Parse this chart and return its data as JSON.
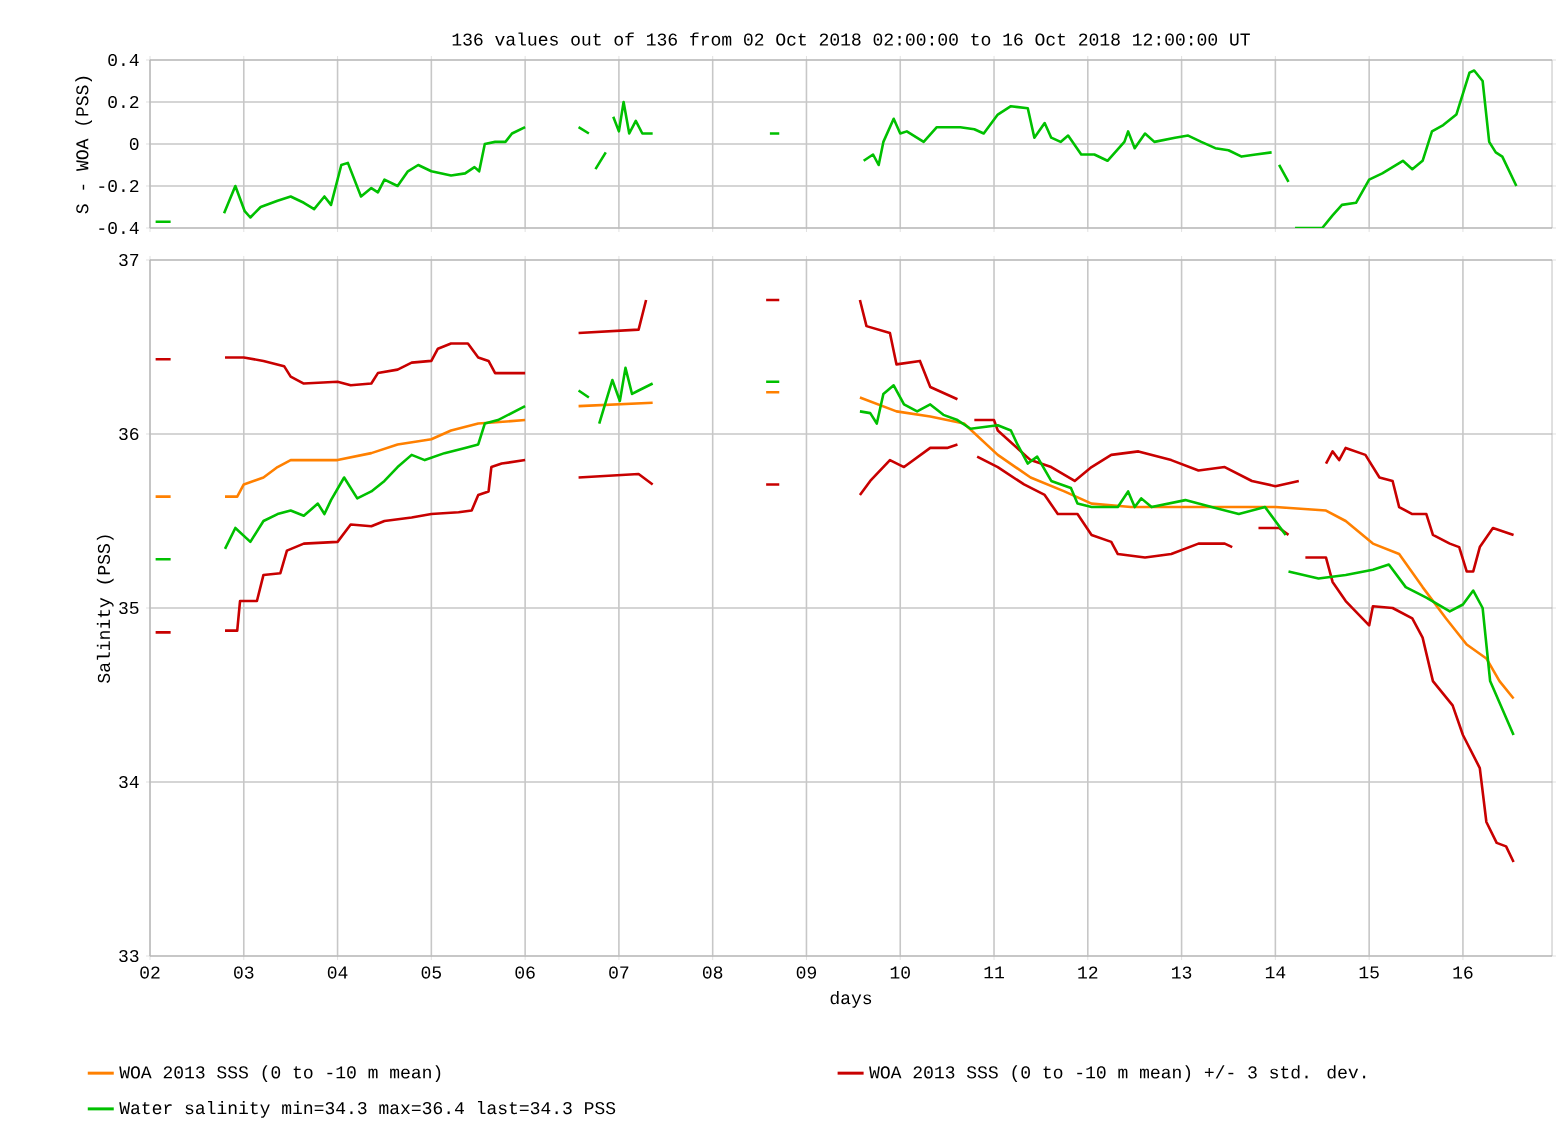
{
  "chart_data": [
    {
      "type": "line",
      "title": "136 values out of 136 from 02 Oct 2018 02:00:00 to 16 Oct 2018 12:00:00 UT",
      "ylabel": "S - WOA (PSS)",
      "xlim": [
        2,
        16.95
      ],
      "ylim": [
        -0.4,
        0.4
      ],
      "xticks": [
        2,
        3,
        4,
        5,
        6,
        7,
        8,
        9,
        10,
        11,
        12,
        13,
        14,
        15,
        16
      ],
      "yticks": [
        -0.4,
        -0.2,
        0,
        0.2,
        0.4
      ],
      "tick_labels": "y",
      "grid": true,
      "series": [
        {
          "color": "#00c000",
          "x": [
            2.06,
            2.22,
            2.5,
            2.79,
            2.91,
            3.01,
            3.07,
            3.18,
            3.36,
            3.5,
            3.64,
            3.75,
            3.86,
            3.93,
            4.04,
            4.11,
            4.25,
            4.36,
            4.43,
            4.5,
            4.64,
            4.75,
            4.86,
            5.0,
            5.21,
            5.36,
            5.46,
            5.51,
            5.57,
            5.68,
            5.79,
            5.86,
            6.0,
            6.3,
            6.57,
            6.68,
            6.7,
            6.75,
            6.86,
            6.9,
            6.94,
            7.0,
            7.05,
            7.11,
            7.18,
            7.25,
            7.36,
            8.0,
            8.61,
            8.71,
            9.2,
            9.61,
            9.71,
            9.77,
            9.82,
            9.93,
            10.0,
            10.07,
            10.25,
            10.39,
            10.64,
            10.79,
            10.89,
            11.04,
            11.18,
            11.36,
            11.43,
            11.54,
            11.61,
            11.71,
            11.79,
            11.93,
            12.07,
            12.21,
            12.39,
            12.43,
            12.5,
            12.61,
            12.71,
            12.93,
            13.07,
            13.21,
            13.36,
            13.5,
            13.64,
            13.79,
            13.96,
            14.0,
            14.04,
            14.14,
            14.18,
            14.21,
            14.5,
            14.61,
            14.71,
            14.86,
            15.0,
            15.14,
            15.36,
            15.46,
            15.57,
            15.67,
            15.79,
            15.93,
            16.0,
            16.07,
            16.12,
            16.21,
            16.28,
            16.35,
            16.42,
            16.57
          ],
          "values": [
            -0.37,
            -0.37,
            null,
            -0.33,
            -0.2,
            -0.32,
            -0.35,
            -0.3,
            -0.27,
            -0.25,
            -0.28,
            -0.31,
            -0.25,
            -0.29,
            -0.1,
            -0.09,
            -0.25,
            -0.21,
            -0.23,
            -0.17,
            -0.2,
            -0.13,
            -0.1,
            -0.13,
            -0.15,
            -0.14,
            -0.11,
            -0.13,
            0.0,
            0.01,
            0.01,
            0.05,
            0.08,
            null,
            0.08,
            0.05,
            null,
            -0.12,
            -0.04,
            null,
            0.13,
            0.06,
            0.2,
            0.05,
            0.11,
            0.05,
            0.05,
            null,
            0.05,
            0.05,
            null,
            -0.08,
            -0.05,
            -0.1,
            0.01,
            0.12,
            0.05,
            0.06,
            0.01,
            0.08,
            0.08,
            0.07,
            0.05,
            0.14,
            0.18,
            0.17,
            0.03,
            0.1,
            0.03,
            0.01,
            0.04,
            -0.05,
            -0.05,
            -0.08,
            0.01,
            0.06,
            -0.02,
            0.05,
            0.01,
            0.03,
            0.04,
            0.01,
            -0.02,
            -0.03,
            -0.06,
            -0.05,
            -0.04,
            null,
            -0.1,
            -0.18,
            null,
            -0.4,
            -0.4,
            -0.34,
            -0.29,
            -0.28,
            -0.17,
            -0.14,
            -0.08,
            -0.12,
            -0.08,
            0.06,
            0.09,
            0.14,
            0.24,
            0.34,
            0.35,
            0.3,
            0.01,
            -0.04,
            -0.06,
            -0.2
          ]
        }
      ]
    },
    {
      "type": "line",
      "xlabel": "days",
      "ylabel": "Salinity (PSS)",
      "xlim": [
        2,
        16.95
      ],
      "ylim": [
        33,
        37
      ],
      "xticks": [
        {
          "value": 2,
          "label": "02"
        },
        {
          "value": 3,
          "label": "03"
        },
        {
          "value": 4,
          "label": "04"
        },
        {
          "value": 5,
          "label": "05"
        },
        {
          "value": 6,
          "label": "06"
        },
        {
          "value": 7,
          "label": "07"
        },
        {
          "value": 8,
          "label": "08"
        },
        {
          "value": 9,
          "label": "09"
        },
        {
          "value": 10,
          "label": "10"
        },
        {
          "value": 11,
          "label": "11"
        },
        {
          "value": 12,
          "label": "12"
        },
        {
          "value": 13,
          "label": "13"
        },
        {
          "value": 14,
          "label": "14"
        },
        {
          "value": 15,
          "label": "15"
        },
        {
          "value": 16,
          "label": "16"
        }
      ],
      "yticks": [
        33,
        34,
        35,
        36,
        37
      ],
      "grid": true,
      "legend": "bottom",
      "series": [
        {
          "name": "WOA 2013 SSS (0 to -10 m mean)",
          "color": "#ff8000",
          "x": [
            2.06,
            2.22,
            2.5,
            2.8,
            2.93,
            3.0,
            3.21,
            3.36,
            3.5,
            4.0,
            4.36,
            4.64,
            5.0,
            5.21,
            5.5,
            6.0,
            6.3,
            6.57,
            7.36,
            8.0,
            8.57,
            8.71,
            9.2,
            9.57,
            9.96,
            10.32,
            10.68,
            11.04,
            11.39,
            11.75,
            12.04,
            12.46,
            13.18,
            14.0,
            14.54,
            14.75,
            15.04,
            15.32,
            15.57,
            15.82,
            16.04,
            16.25,
            16.39,
            16.54
          ],
          "values": [
            35.64,
            35.64,
            null,
            35.64,
            35.64,
            35.71,
            35.75,
            35.81,
            35.85,
            35.85,
            35.89,
            35.94,
            35.97,
            36.02,
            36.06,
            36.08,
            null,
            36.16,
            36.18,
            null,
            36.24,
            36.24,
            null,
            36.21,
            36.13,
            36.1,
            36.06,
            35.88,
            35.75,
            35.67,
            35.6,
            35.58,
            35.58,
            35.58,
            35.56,
            35.5,
            35.37,
            35.31,
            35.12,
            34.94,
            34.79,
            34.71,
            34.58,
            34.48
          ]
        },
        {
          "name": "WOA 2013 SSS (0 to -10 m mean) +/- 3 std. dev.",
          "color": "#c80000",
          "x": [
            2.06,
            2.22,
            2.5,
            2.8,
            3.0,
            3.21,
            3.43,
            3.5,
            3.64,
            4.0,
            4.14,
            4.36,
            4.43,
            4.64,
            4.79,
            5.0,
            5.07,
            5.21,
            5.39,
            5.5,
            5.61,
            5.68,
            6.0,
            6.3,
            6.57,
            7.21,
            7.29,
            8.0,
            8.57,
            8.71,
            9.2,
            9.57,
            9.64,
            9.89,
            9.96,
            10.21,
            10.32,
            10.61,
            10.7,
            10.79,
            11.0,
            11.04,
            11.39,
            11.61,
            11.86,
            12.04,
            12.25,
            12.54,
            12.89,
            13.18,
            13.46,
            13.75,
            14.0,
            14.25,
            14.4,
            14.54,
            14.61,
            14.68,
            14.75,
            14.96,
            15.11,
            15.25,
            15.32,
            15.46,
            15.61,
            15.68,
            15.86,
            15.96,
            16.04,
            16.11,
            16.18,
            16.32,
            16.43,
            16.54
          ],
          "values": [
            36.43,
            36.43,
            null,
            36.44,
            36.44,
            36.42,
            36.39,
            36.33,
            36.29,
            36.3,
            36.28,
            36.29,
            36.35,
            36.37,
            36.41,
            36.42,
            36.49,
            36.52,
            36.52,
            36.44,
            36.42,
            36.35,
            36.35,
            null,
            36.58,
            36.6,
            36.77,
            null,
            36.77,
            36.77,
            null,
            36.77,
            36.62,
            36.58,
            36.4,
            36.42,
            36.27,
            36.2,
            null,
            36.08,
            36.08,
            36.02,
            35.85,
            35.81,
            35.73,
            35.81,
            35.88,
            35.9,
            35.85,
            35.79,
            35.81,
            35.73,
            35.7,
            35.73,
            null,
            35.83,
            35.9,
            35.85,
            35.92,
            35.88,
            35.75,
            35.73,
            35.58,
            35.54,
            35.54,
            35.42,
            35.37,
            35.35,
            35.21,
            35.21,
            35.35,
            35.46,
            35.44,
            35.42
          ]
        },
        {
          "color": "#c80000",
          "x": [
            2.06,
            2.22,
            2.5,
            2.8,
            2.93,
            2.96,
            3.14,
            3.21,
            3.39,
            3.46,
            3.64,
            4.0,
            4.14,
            4.36,
            4.5,
            4.79,
            5.0,
            5.29,
            5.43,
            5.5,
            5.61,
            5.64,
            5.75,
            6.0,
            6.3,
            6.57,
            7.21,
            7.36,
            8.0,
            8.57,
            8.71,
            9.2,
            9.57,
            9.68,
            9.89,
            10.04,
            10.32,
            10.5,
            10.61,
            10.7,
            10.82,
            11.04,
            11.32,
            11.54,
            11.68,
            11.89,
            12.04,
            12.25,
            12.32,
            12.61,
            12.89,
            13.18,
            13.46,
            13.54,
            13.7,
            13.82,
            14.04,
            14.14,
            14.2,
            14.32,
            14.54,
            14.61,
            14.75,
            15.0,
            15.04,
            15.25,
            15.46,
            15.57,
            15.68,
            15.89,
            16.0,
            16.18,
            16.25,
            16.36,
            16.46,
            16.54
          ],
          "values": [
            34.86,
            34.86,
            null,
            34.87,
            34.87,
            35.04,
            35.04,
            35.19,
            35.2,
            35.33,
            35.37,
            35.38,
            35.48,
            35.47,
            35.5,
            35.52,
            35.54,
            35.55,
            35.56,
            35.65,
            35.67,
            35.81,
            35.83,
            35.85,
            null,
            35.75,
            35.77,
            35.71,
            null,
            35.71,
            35.71,
            null,
            35.65,
            35.73,
            35.85,
            35.81,
            35.92,
            35.92,
            35.94,
            null,
            35.87,
            35.81,
            35.71,
            35.65,
            35.54,
            35.54,
            35.42,
            35.38,
            35.31,
            35.29,
            35.31,
            35.37,
            35.37,
            35.35,
            null,
            35.46,
            35.46,
            35.42,
            null,
            35.29,
            35.29,
            35.15,
            35.04,
            34.9,
            35.01,
            35.0,
            34.94,
            34.83,
            34.58,
            34.44,
            34.27,
            34.08,
            33.77,
            33.65,
            33.63,
            33.54
          ]
        },
        {
          "name": "Water salinity min=34.3 max=36.4 last=34.3 PSS",
          "color": "#00c000",
          "x": [
            2.06,
            2.22,
            2.5,
            2.8,
            2.91,
            3.07,
            3.21,
            3.36,
            3.5,
            3.64,
            3.79,
            3.86,
            3.93,
            4.07,
            4.21,
            4.36,
            4.5,
            4.64,
            4.79,
            4.93,
            5.14,
            5.36,
            5.5,
            5.57,
            5.71,
            6.0,
            6.3,
            6.57,
            6.68,
            6.73,
            6.79,
            6.93,
            7.01,
            7.07,
            7.14,
            7.21,
            7.36,
            8.0,
            8.57,
            8.71,
            9.2,
            9.57,
            9.68,
            9.75,
            9.82,
            9.93,
            10.04,
            10.18,
            10.32,
            10.46,
            10.61,
            10.75,
            11.04,
            11.18,
            11.25,
            11.36,
            11.46,
            11.61,
            11.82,
            11.89,
            12.04,
            12.32,
            12.43,
            12.5,
            12.57,
            12.68,
            13.04,
            13.32,
            13.61,
            13.89,
            14.11,
            14.12,
            14.14,
            14.46,
            14.75,
            15.04,
            15.21,
            15.39,
            15.61,
            15.86,
            16.0,
            16.11,
            16.21,
            16.29,
            16.54
          ],
          "values": [
            35.28,
            35.28,
            null,
            35.34,
            35.46,
            35.38,
            35.5,
            35.54,
            35.56,
            35.53,
            35.6,
            35.54,
            35.62,
            35.75,
            35.63,
            35.67,
            35.73,
            35.81,
            35.88,
            35.85,
            35.89,
            35.92,
            35.94,
            36.06,
            36.08,
            36.16,
            null,
            36.25,
            36.21,
            null,
            36.06,
            36.31,
            36.19,
            36.38,
            36.23,
            36.25,
            36.29,
            null,
            36.3,
            36.3,
            null,
            36.13,
            36.12,
            36.06,
            36.23,
            36.28,
            36.17,
            36.13,
            36.17,
            36.11,
            36.08,
            36.03,
            36.05,
            36.02,
            35.94,
            35.83,
            35.87,
            35.73,
            35.69,
            35.6,
            35.58,
            35.58,
            35.67,
            35.58,
            35.63,
            35.58,
            35.62,
            35.58,
            35.54,
            35.58,
            35.42,
            null,
            35.21,
            35.17,
            35.19,
            35.22,
            35.25,
            35.12,
            35.06,
            34.98,
            35.02,
            35.1,
            35.0,
            34.58,
            34.27
          ]
        }
      ]
    }
  ]
}
